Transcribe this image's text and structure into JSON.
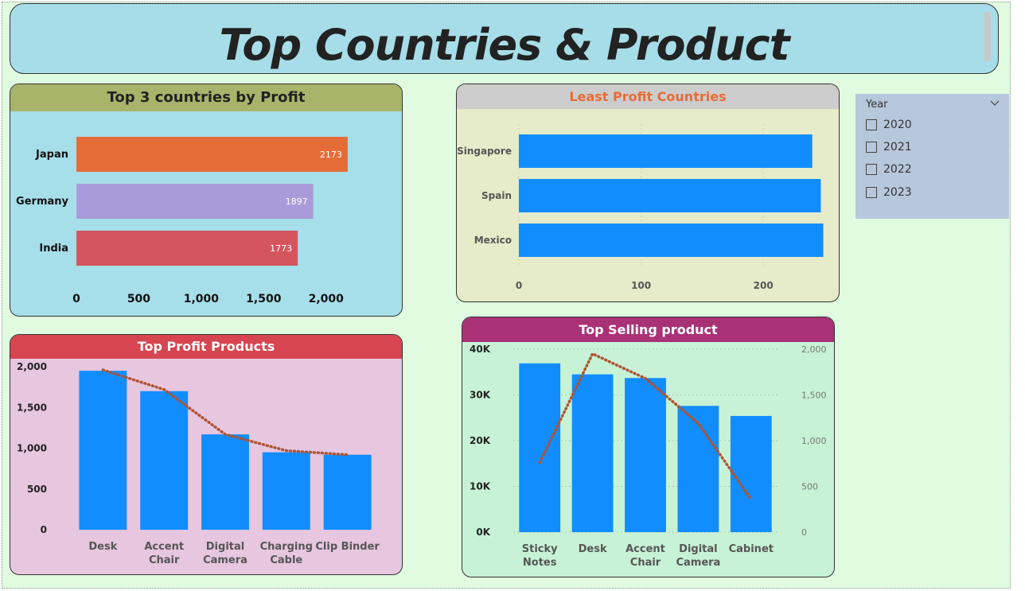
{
  "page": {
    "title": "Top Countries & Product"
  },
  "slicer": {
    "title": "Year",
    "options": [
      "2020",
      "2021",
      "2022",
      "2023"
    ]
  },
  "chart_data": [
    {
      "id": "top_countries",
      "type": "bar",
      "orientation": "horizontal",
      "title": "Top 3 countries by Profit",
      "categories": [
        "Japan",
        "Germany",
        "India"
      ],
      "values": [
        2173,
        1897,
        1773
      ],
      "colors": [
        "#e66c37",
        "#a99adb",
        "#d5555f"
      ],
      "data_labels": [
        "2173",
        "1897",
        "1773"
      ],
      "xlim": [
        0,
        2250
      ],
      "xticks": [
        0,
        500,
        1000,
        1500,
        2000
      ],
      "xtick_labels": [
        "0",
        "500",
        "1,000",
        "1,500",
        "2,000"
      ]
    },
    {
      "id": "least_countries",
      "type": "bar",
      "orientation": "horizontal",
      "title": "Least Profit Countries",
      "categories": [
        "Singapore",
        "Spain",
        "Mexico"
      ],
      "values": [
        240,
        247,
        249
      ],
      "color": "#118dff",
      "xlim": [
        0,
        250
      ],
      "xticks": [
        0,
        100,
        200
      ],
      "xtick_labels": [
        "0",
        "100",
        "200"
      ]
    },
    {
      "id": "top_profit_products",
      "type": "bar",
      "title": "Top Profit Products",
      "categories": [
        [
          "Desk"
        ],
        [
          "Accent",
          "Chair"
        ],
        [
          "Digital",
          "Camera"
        ],
        [
          "Charging",
          "Cable"
        ],
        [
          "Clip Binder"
        ]
      ],
      "values": [
        1950,
        1700,
        1170,
        950,
        920
      ],
      "line_values": [
        1960,
        1720,
        1170,
        970,
        920
      ],
      "bar_color": "#118dff",
      "line_color": "#b0522e",
      "ylim": [
        0,
        2000
      ],
      "yticks": [
        0,
        500,
        1000,
        1500,
        2000
      ],
      "ytick_labels": [
        "0",
        "500",
        "1,000",
        "1,500",
        "2,000"
      ]
    },
    {
      "id": "top_selling",
      "type": "bar",
      "title": "Top Selling product",
      "categories": [
        [
          "Sticky",
          "Notes"
        ],
        [
          "Desk"
        ],
        [
          "Accent",
          "Chair"
        ],
        [
          "Digital",
          "Camera"
        ],
        [
          "Cabinet"
        ]
      ],
      "values": [
        36900,
        34500,
        33700,
        27600,
        25400
      ],
      "line_values": [
        760,
        1950,
        1680,
        1190,
        360
      ],
      "bar_color": "#118dff",
      "line_color": "#b0522e",
      "ylim": [
        0,
        40000
      ],
      "yticks": [
        0,
        10000,
        20000,
        30000,
        40000
      ],
      "ytick_labels": [
        "0K",
        "10K",
        "20K",
        "30K",
        "40K"
      ],
      "y2lim": [
        0,
        2000
      ],
      "y2ticks": [
        0,
        500,
        1000,
        1500,
        2000
      ],
      "y2tick_labels": [
        "0",
        "500",
        "1,000",
        "1,500",
        "2,000"
      ]
    }
  ]
}
